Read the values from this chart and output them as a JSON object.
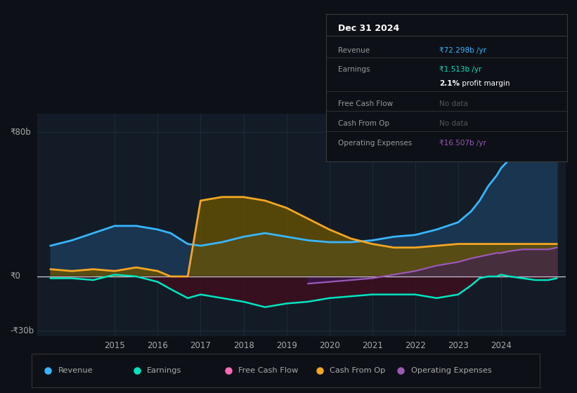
{
  "bg_color": "#0d1117",
  "plot_bg_color": "#131c26",
  "ylim": [
    -33,
    90
  ],
  "xlim": [
    2013.2,
    2025.5
  ],
  "years": [
    2013.5,
    2014.0,
    2014.5,
    2015.0,
    2015.5,
    2016.0,
    2016.3,
    2016.7,
    2017.0,
    2017.5,
    2018.0,
    2018.5,
    2019.0,
    2019.5,
    2020.0,
    2020.5,
    2021.0,
    2021.5,
    2022.0,
    2022.5,
    2023.0,
    2023.3,
    2023.5,
    2023.7,
    2023.9,
    2024.0,
    2024.2,
    2024.5,
    2024.8,
    2025.1,
    2025.3
  ],
  "revenue": [
    17,
    20,
    24,
    28,
    28,
    26,
    24,
    18,
    17,
    19,
    22,
    24,
    22,
    20,
    19,
    19,
    20,
    22,
    23,
    26,
    30,
    36,
    42,
    50,
    56,
    60,
    65,
    70,
    74,
    80,
    84
  ],
  "earnings": [
    -1,
    -1,
    -2,
    1,
    0,
    -3,
    -7,
    -12,
    -10,
    -12,
    -14,
    -17,
    -15,
    -14,
    -12,
    -11,
    -10,
    -10,
    -10,
    -12,
    -10,
    -5,
    -1,
    0,
    0,
    1,
    0,
    -1,
    -2,
    -2,
    -1
  ],
  "cash_from_op": [
    4,
    3,
    4,
    3,
    5,
    3,
    0,
    0,
    42,
    44,
    44,
    42,
    38,
    32,
    26,
    21,
    18,
    16,
    16,
    17,
    18,
    18,
    18,
    18,
    18,
    18,
    18,
    18,
    18,
    18,
    18
  ],
  "op_expenses": [
    null,
    null,
    null,
    null,
    null,
    null,
    null,
    null,
    null,
    null,
    null,
    null,
    null,
    -4,
    -3,
    -2,
    -1,
    1,
    3,
    6,
    8,
    10,
    11,
    12,
    13,
    13,
    14,
    15,
    15,
    15,
    16
  ],
  "revenue_color": "#38b6ff",
  "earnings_color": "#00e5c0",
  "cash_from_op_color": "#f5a623",
  "op_expenses_color": "#9b59b6",
  "revenue_fill_color": "#1a3550",
  "earnings_neg_fill": "#3d0f1e",
  "cash_fill_color": "#6b5500",
  "op_fill_color": "#3d1a5a",
  "zero_line_color": "#cccccc",
  "grid_h_color": "#1e2d3d",
  "grid_v_color": "#1e2d3d",
  "text_color": "#aaaaaa",
  "legend_items": [
    "Revenue",
    "Earnings",
    "Free Cash Flow",
    "Cash From Op",
    "Operating Expenses"
  ],
  "legend_colors": [
    "#38b6ff",
    "#00e5c0",
    "#ff69b4",
    "#f5a623",
    "#9b59b6"
  ],
  "xticks": [
    2015,
    2016,
    2017,
    2018,
    2019,
    2020,
    2021,
    2022,
    2023,
    2024
  ],
  "ylabel_80b": "₹80b",
  "ylabel_0": "₹0",
  "ylabel_n30b": "-₹30b",
  "info_title": "Dec 31 2024",
  "info_rows": [
    {
      "label": "Revenue",
      "value": "₹72.298b /yr",
      "vcolor": "#38b6ff",
      "sep_above": false
    },
    {
      "label": "Earnings",
      "value": "₹1.513b /yr",
      "vcolor": "#00e5c0",
      "sep_above": true
    },
    {
      "label": "",
      "value": "",
      "vcolor": "#ffffff",
      "sep_above": false,
      "special": "margin"
    },
    {
      "label": "Free Cash Flow",
      "value": "No data",
      "vcolor": "#555555",
      "sep_above": true
    },
    {
      "label": "Cash From Op",
      "value": "No data",
      "vcolor": "#555555",
      "sep_above": true
    },
    {
      "label": "Operating Expenses",
      "value": "₹16.507b /yr",
      "vcolor": "#9b59b6",
      "sep_above": true
    }
  ]
}
